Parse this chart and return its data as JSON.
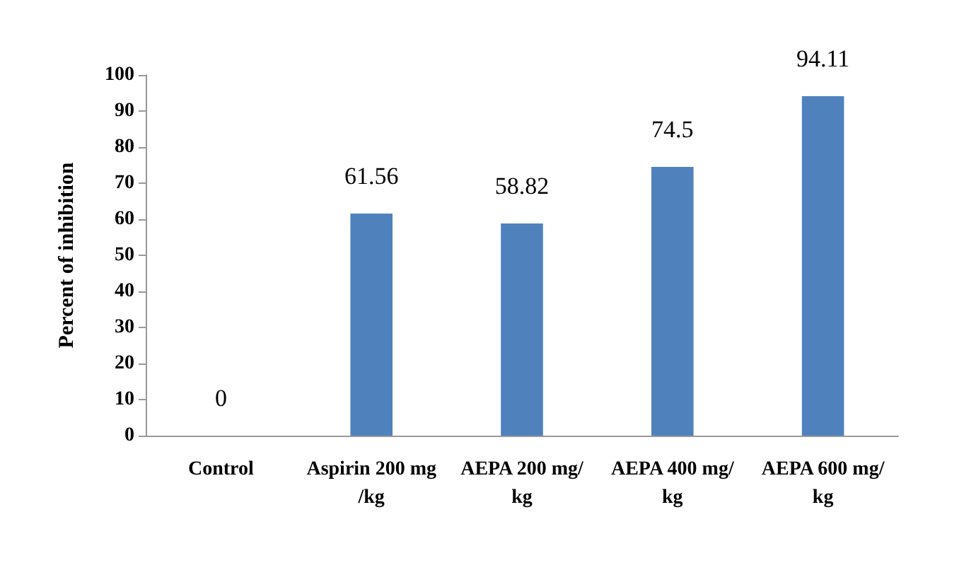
{
  "chart_data": {
    "type": "bar",
    "ylabel": "Percent of inhibition",
    "categories": [
      "Control",
      "Aspirin 200 mg/kg",
      "AEPA 200 mg/kg",
      "AEPA 400 mg/kg",
      "AEPA 600 mg/kg"
    ],
    "values": [
      0,
      61.56,
      58.82,
      74.5,
      94.11
    ],
    "color": "#4f81bd",
    "ylim": [
      0,
      100
    ],
    "yticks": [
      0,
      10,
      20,
      30,
      40,
      50,
      60,
      70,
      80,
      90,
      100
    ],
    "grid": false,
    "data_labels": true
  }
}
